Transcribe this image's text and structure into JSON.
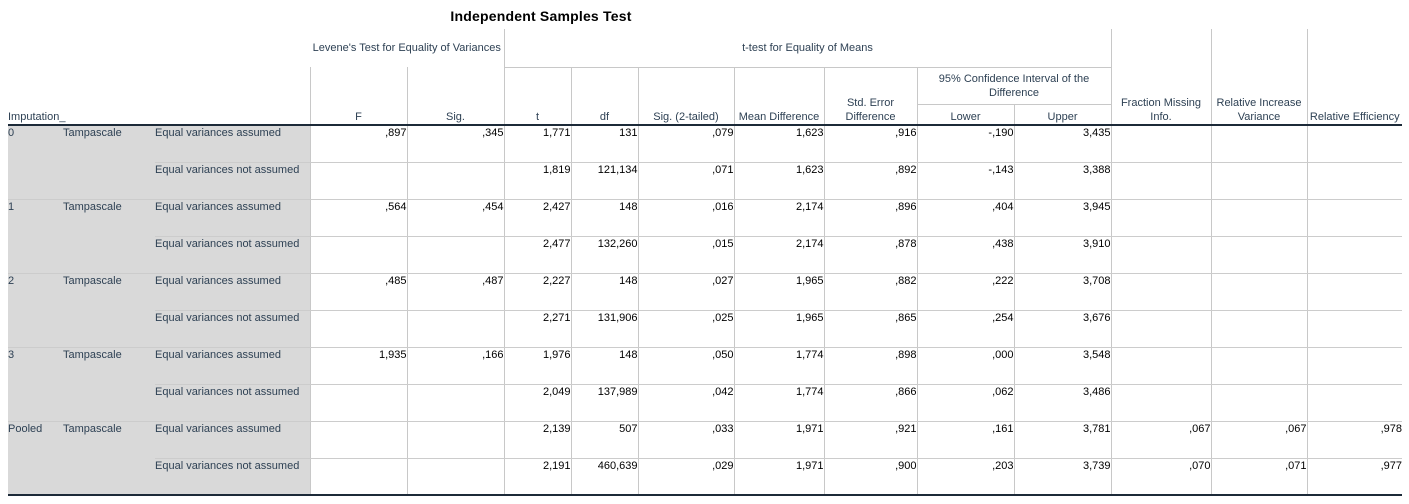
{
  "title": "Independent Samples Test",
  "colors": {
    "row_header_background": "#d9d9d9",
    "header_text": "#2e4154",
    "grid_line": "#c8c8c8",
    "frame_line": "#1c2a38",
    "data_text": "#000000"
  },
  "table": {
    "row_dimension_label": "Imputation_",
    "group_headers": {
      "levene": "Levene's Test for Equality of Variances",
      "ttest": "t-test for Equality of Means",
      "ci": "95% Confidence Interval of the Difference"
    },
    "columns": [
      "F",
      "Sig.",
      "t",
      "df",
      "Sig. (2-tailed)",
      "Mean Difference",
      "Std. Error Difference",
      "Lower",
      "Upper",
      "Fraction Missing Info.",
      "Relative Increase Variance",
      "Relative Efficiency"
    ],
    "groups": [
      {
        "imputation": "0",
        "variable": "Tampascale",
        "rows": [
          {
            "assumption": "Equal variances assumed",
            "values": [
              ",897",
              ",345",
              "1,771",
              "131",
              ",079",
              "1,623",
              ",916",
              "-,190",
              "3,435",
              "",
              "",
              ""
            ]
          },
          {
            "assumption": "Equal variances not assumed",
            "values": [
              "",
              "",
              "1,819",
              "121,134",
              ",071",
              "1,623",
              ",892",
              "-,143",
              "3,388",
              "",
              "",
              ""
            ]
          }
        ]
      },
      {
        "imputation": "1",
        "variable": "Tampascale",
        "rows": [
          {
            "assumption": "Equal variances assumed",
            "values": [
              ",564",
              ",454",
              "2,427",
              "148",
              ",016",
              "2,174",
              ",896",
              ",404",
              "3,945",
              "",
              "",
              ""
            ]
          },
          {
            "assumption": "Equal variances not assumed",
            "values": [
              "",
              "",
              "2,477",
              "132,260",
              ",015",
              "2,174",
              ",878",
              ",438",
              "3,910",
              "",
              "",
              ""
            ]
          }
        ]
      },
      {
        "imputation": "2",
        "variable": "Tampascale",
        "rows": [
          {
            "assumption": "Equal variances assumed",
            "values": [
              ",485",
              ",487",
              "2,227",
              "148",
              ",027",
              "1,965",
              ",882",
              ",222",
              "3,708",
              "",
              "",
              ""
            ]
          },
          {
            "assumption": "Equal variances not assumed",
            "values": [
              "",
              "",
              "2,271",
              "131,906",
              ",025",
              "1,965",
              ",865",
              ",254",
              "3,676",
              "",
              "",
              ""
            ]
          }
        ]
      },
      {
        "imputation": "3",
        "variable": "Tampascale",
        "rows": [
          {
            "assumption": "Equal variances assumed",
            "values": [
              "1,935",
              ",166",
              "1,976",
              "148",
              ",050",
              "1,774",
              ",898",
              ",000",
              "3,548",
              "",
              "",
              ""
            ]
          },
          {
            "assumption": "Equal variances not assumed",
            "values": [
              "",
              "",
              "2,049",
              "137,989",
              ",042",
              "1,774",
              ",866",
              ",062",
              "3,486",
              "",
              "",
              ""
            ]
          }
        ]
      },
      {
        "imputation": "Pooled",
        "variable": "Tampascale",
        "rows": [
          {
            "assumption": "Equal variances assumed",
            "values": [
              "",
              "",
              "2,139",
              "507",
              ",033",
              "1,971",
              ",921",
              ",161",
              "3,781",
              ",067",
              ",067",
              ",978"
            ]
          },
          {
            "assumption": "Equal variances not assumed",
            "values": [
              "",
              "",
              "2,191",
              "460,639",
              ",029",
              "1,971",
              ",900",
              ",203",
              "3,739",
              ",070",
              ",071",
              ",977"
            ]
          }
        ]
      }
    ]
  }
}
